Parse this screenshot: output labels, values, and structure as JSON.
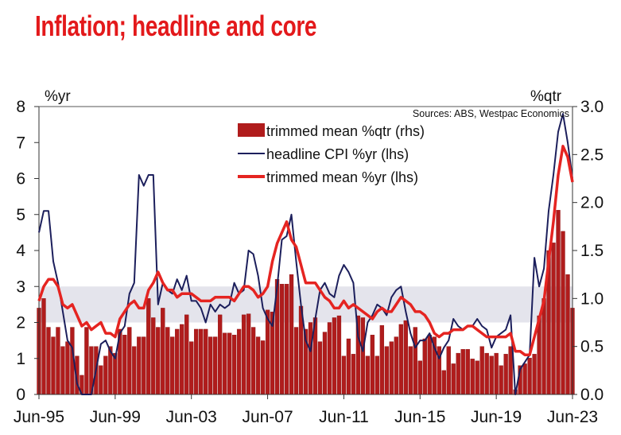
{
  "chart_data": {
    "type": "bar+line",
    "title": "Inflation; headline and core",
    "source_note": "Sources: ABS, Westpac Economics",
    "frequency": "quarterly",
    "x_start": "Jun-95",
    "x_end": "Jun-23",
    "x_tick_labels": [
      "Jun-95",
      "Jun-99",
      "Jun-03",
      "Jun-07",
      "Jun-11",
      "Jun-15",
      "Jun-19",
      "Jun-23"
    ],
    "y_left": {
      "label": "%yr",
      "ylim": [
        0,
        8
      ],
      "ticks": [
        "0",
        "1",
        "2",
        "3",
        "4",
        "5",
        "6",
        "7",
        "8"
      ]
    },
    "y_right": {
      "label": "%qtr",
      "ylim": [
        0,
        3
      ],
      "ticks": [
        "0.0",
        "0.5",
        "1.0",
        "1.5",
        "2.0",
        "2.5",
        "3.0"
      ]
    },
    "target_band_lhs": [
      2,
      3
    ],
    "grid": false,
    "legend_placement": "top-center",
    "colors": {
      "bars": "#b01c1c",
      "headline": "#1c1f5c",
      "trimmed_yr": "#e52421",
      "band": "#e4e4ec",
      "title": "#e3191b"
    },
    "series": [
      {
        "name": "trimmed mean %qtr (rhs)",
        "type": "bar",
        "axis": "right",
        "values": [
          0.9,
          1.0,
          0.7,
          0.6,
          0.7,
          0.5,
          0.55,
          0.7,
          0.4,
          0.2,
          0.7,
          0.5,
          0.5,
          0.3,
          0.4,
          0.5,
          0.43,
          0.68,
          0.62,
          0.7,
          0.5,
          0.6,
          0.6,
          1.0,
          0.8,
          0.7,
          0.9,
          0.7,
          0.6,
          0.68,
          0.73,
          0.83,
          0.55,
          0.68,
          0.68,
          0.68,
          0.6,
          0.6,
          0.83,
          0.64,
          0.64,
          0.62,
          0.68,
          0.83,
          0.84,
          0.7,
          0.6,
          0.56,
          0.88,
          0.86,
          1.2,
          1.15,
          1.15,
          1.25,
          0.7,
          0.92,
          0.68,
          0.75,
          0.8,
          0.55,
          0.65,
          0.75,
          0.8,
          0.82,
          0.4,
          0.58,
          0.42,
          0.82,
          0.8,
          0.4,
          0.62,
          0.4,
          0.72,
          0.5,
          0.55,
          0.6,
          0.73,
          0.77,
          0.5,
          0.7,
          0.35,
          0.58,
          0.62,
          0.6,
          0.5,
          0.25,
          0.5,
          0.32,
          0.43,
          0.47,
          0.47,
          0.37,
          0.35,
          0.5,
          0.43,
          0.4,
          0.43,
          0.3,
          0.42,
          0.5,
          0.05,
          0.3,
          0.32,
          0.38,
          0.42,
          0.82,
          1.0,
          1.5,
          1.58,
          1.92,
          1.7,
          1.25,
          0.9
        ]
      },
      {
        "name": "headline CPI %yr (lhs)",
        "type": "line",
        "axis": "left",
        "values": [
          4.5,
          5.1,
          5.1,
          3.7,
          3.1,
          2.3,
          1.5,
          1.3,
          0.3,
          -0.3,
          -0.2,
          0.0,
          0.7,
          1.4,
          1.5,
          1.2,
          1.0,
          1.7,
          1.9,
          2.8,
          3.1,
          6.1,
          5.8,
          6.1,
          6.1,
          2.5,
          3.1,
          2.9,
          2.8,
          3.2,
          2.9,
          3.3,
          2.6,
          2.6,
          2.4,
          2.0,
          2.5,
          2.3,
          2.5,
          2.4,
          2.5,
          3.1,
          2.8,
          2.9,
          4.0,
          3.9,
          3.3,
          2.4,
          2.1,
          1.9,
          3.0,
          4.3,
          4.4,
          5.0,
          3.7,
          2.5,
          1.5,
          1.2,
          2.1,
          2.9,
          3.1,
          2.8,
          2.7,
          3.3,
          3.6,
          3.4,
          3.1,
          1.6,
          1.2,
          2.0,
          2.2,
          2.5,
          2.4,
          2.2,
          2.7,
          2.9,
          3.0,
          2.3,
          1.7,
          1.3,
          1.5,
          1.5,
          1.7,
          1.3,
          1.0,
          1.3,
          1.5,
          2.1,
          1.9,
          1.8,
          1.9,
          1.9,
          2.1,
          1.9,
          1.8,
          1.3,
          1.6,
          1.7,
          1.8,
          2.2,
          -0.3,
          0.7,
          0.9,
          1.1,
          3.8,
          3.0,
          3.5,
          5.1,
          6.1,
          7.3,
          7.8,
          7.0,
          6.0
        ]
      },
      {
        "name": "trimmed mean %yr (lhs)",
        "type": "line",
        "axis": "left",
        "values": [
          2.6,
          3.0,
          3.2,
          3.2,
          3.0,
          2.5,
          2.4,
          2.5,
          2.2,
          1.9,
          2.0,
          1.8,
          1.9,
          2.0,
          1.7,
          1.7,
          1.6,
          2.1,
          2.3,
          2.5,
          2.6,
          2.4,
          2.4,
          2.9,
          3.1,
          3.4,
          3.1,
          2.9,
          2.9,
          2.7,
          2.8,
          2.8,
          2.8,
          2.7,
          2.6,
          2.6,
          2.6,
          2.7,
          2.7,
          2.7,
          2.7,
          2.6,
          2.8,
          3.0,
          3.0,
          2.9,
          2.7,
          2.8,
          3.0,
          3.7,
          4.2,
          4.5,
          4.8,
          4.3,
          4.1,
          3.6,
          3.1,
          3.1,
          3.1,
          2.9,
          2.7,
          2.6,
          2.4,
          2.4,
          2.6,
          2.4,
          2.5,
          2.4,
          2.3,
          2.2,
          2.1,
          2.3,
          2.4,
          2.3,
          2.3,
          2.5,
          2.7,
          2.6,
          2.5,
          2.3,
          2.3,
          2.2,
          2.0,
          1.7,
          1.6,
          1.7,
          1.7,
          1.8,
          1.8,
          1.8,
          1.9,
          1.9,
          1.8,
          1.7,
          1.6,
          1.6,
          1.6,
          1.6,
          1.6,
          1.7,
          1.2,
          1.2,
          1.1,
          1.1,
          1.6,
          2.1,
          2.6,
          3.7,
          4.8,
          6.1,
          6.9,
          6.6,
          5.9
        ]
      }
    ]
  }
}
